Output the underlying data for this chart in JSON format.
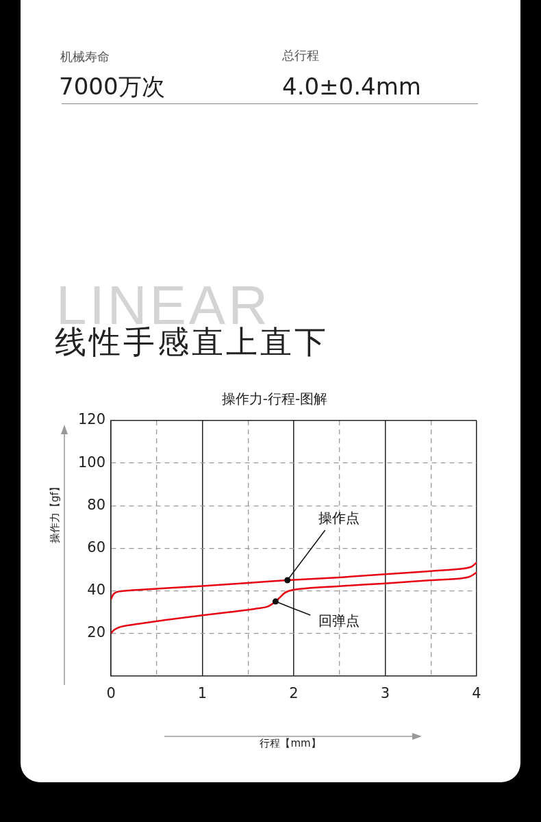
{
  "chart_data": {
    "type": "line",
    "title": "操作力-行程-图解",
    "xlabel": "行程【mm】",
    "ylabel": "操作力【gf】",
    "xlim": [
      0,
      4
    ],
    "ylim": [
      0,
      120
    ],
    "xticks": [
      0,
      {
        "value": 0.5,
        "label": null
      },
      1,
      {
        "value": 1.5,
        "label": null
      },
      2,
      {
        "value": 2.5,
        "label": null
      },
      3,
      {
        "value": 3.5,
        "label": null
      },
      4
    ],
    "yticks": [
      20,
      40,
      60,
      80,
      100,
      120
    ],
    "grid": true,
    "legend": false,
    "series": [
      {
        "color": "#e60012",
        "x": [
          0,
          0.02,
          0.05,
          0.1,
          0.2,
          0.5,
          1,
          1.5,
          1.93,
          2.5,
          3,
          3.5,
          3.8,
          3.9,
          3.95,
          4
        ],
        "values": [
          36,
          38,
          39.2,
          39.8,
          40.2,
          41,
          42.3,
          43.7,
          45,
          46.3,
          47.8,
          49.3,
          50.2,
          50.8,
          51.5,
          53.3
        ]
      },
      {
        "color": "#e60012",
        "x": [
          0,
          0.03,
          0.08,
          0.15,
          0.3,
          0.6,
          1,
          1.3,
          1.6,
          1.72,
          1.8,
          1.85,
          1.9,
          1.95,
          2.05,
          2.5,
          3,
          3.5,
          3.85,
          3.92,
          3.96,
          4
        ],
        "values": [
          20,
          21.5,
          22.7,
          23.5,
          24.5,
          26.3,
          28.5,
          30,
          31.7,
          32.7,
          35,
          37,
          39,
          40,
          40.8,
          42.2,
          43.5,
          45,
          46,
          46.6,
          47.5,
          48.7
        ]
      }
    ],
    "annotations": [
      "机械寿命",
      "7000万次",
      "总行程",
      "4.0±0.4mm",
      "LINEAR",
      "线性手感直上直下",
      {
        "text": "操作点",
        "x": 1.93,
        "y": 45
      },
      {
        "text": "回弹点",
        "x": 1.8,
        "y": 35
      }
    ]
  }
}
